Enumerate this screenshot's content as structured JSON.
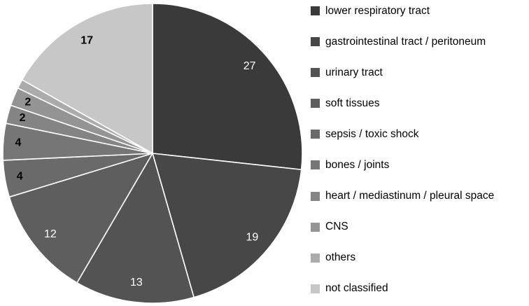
{
  "figure": {
    "background_color": "#ffffff",
    "separator_color": "#ffffff"
  },
  "chart_data": {
    "type": "pie",
    "title": "",
    "legend_position": "right",
    "direction": "clockwise",
    "start_angle_deg": 0,
    "slices": [
      {
        "label": "lower respiratory tract",
        "value": 27,
        "data_label": "27",
        "color": "#3a3a3a",
        "label_color": "#ffffff",
        "label_bold": false
      },
      {
        "label": "gastrointestinal tract / peritoneum",
        "value": 19,
        "data_label": "19",
        "color": "#474747",
        "label_color": "#ffffff",
        "label_bold": false
      },
      {
        "label": "urinary tract",
        "value": 13,
        "data_label": "13",
        "color": "#535353",
        "label_color": "#ffffff",
        "label_bold": false
      },
      {
        "label": "soft tissues",
        "value": 12,
        "data_label": "12",
        "color": "#5e5e5e",
        "label_color": "#ffffff",
        "label_bold": false
      },
      {
        "label": "sepsis / toxic shock",
        "value": 4,
        "data_label": "4",
        "color": "#6a6a6a",
        "label_color": "#000000",
        "label_bold": true
      },
      {
        "label": "bones / joints",
        "value": 4,
        "data_label": "4",
        "color": "#767676",
        "label_color": "#000000",
        "label_bold": true
      },
      {
        "label": "heart / mediastinum / pleural space",
        "value": 2,
        "data_label": "2",
        "color": "#848484",
        "label_color": "#000000",
        "label_bold": true
      },
      {
        "label": "CNS",
        "value": 2,
        "data_label": "2",
        "color": "#949494",
        "label_color": "#000000",
        "label_bold": true
      },
      {
        "label": "others",
        "value": 1,
        "data_label": "",
        "color": "#ababab",
        "label_color": "#000000",
        "label_bold": true
      },
      {
        "label": "not classified",
        "value": 17,
        "data_label": "17",
        "color": "#c7c7c7",
        "label_color": "#000000",
        "label_bold": true
      }
    ]
  }
}
